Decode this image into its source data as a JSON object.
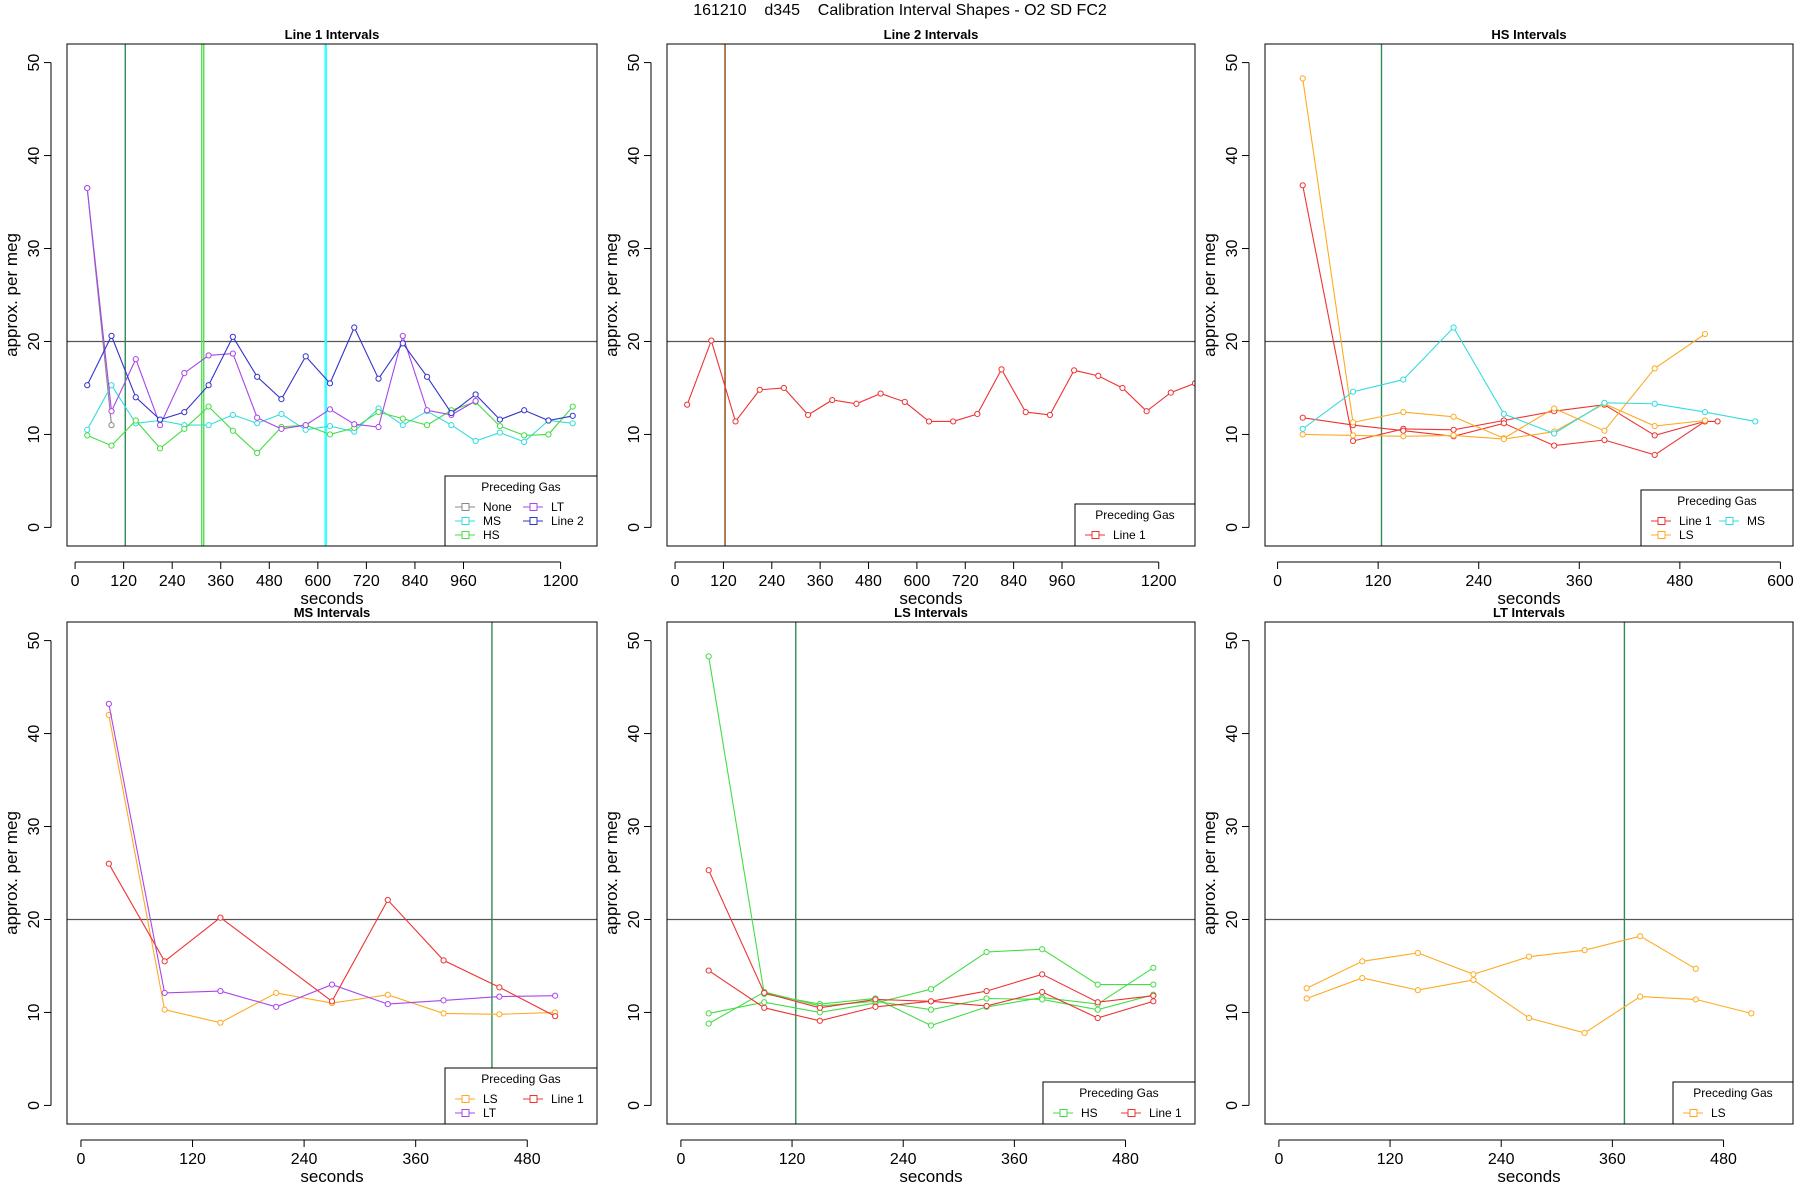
{
  "figure_title": "161210    d345    Calibration Interval Shapes - O2 SD FC2",
  "chart_data": [
    {
      "type": "line",
      "title": "Line 1 Intervals",
      "xlabel": "seconds",
      "ylabel": "approx. per meg",
      "xlim": [
        -20,
        1290
      ],
      "ylim": [
        -2,
        52
      ],
      "xticks": [
        0,
        120,
        240,
        360,
        480,
        600,
        720,
        840,
        960,
        1200
      ],
      "yticks": [
        0,
        10,
        20,
        30,
        40,
        50
      ],
      "hline": 20,
      "vlines": [
        {
          "x": 124,
          "color": "#2e8b57"
        },
        {
          "x": 313,
          "color": "#55dd55"
        },
        {
          "x": 318,
          "color": "#55dd55"
        },
        {
          "x": 618,
          "color": "#33ffff"
        },
        {
          "x": 621,
          "color": "#33ffff"
        }
      ],
      "legend_title": "Preceding Gas",
      "legend_position": "bottom-right",
      "legend_cols": 2,
      "series": [
        {
          "name": "None",
          "color": "#888888",
          "x": [
            30,
            90
          ],
          "y": [
            36.5,
            11
          ]
        },
        {
          "name": "MS",
          "color": "#33dddd",
          "x": [
            30,
            90,
            150,
            210,
            270,
            330,
            390,
            450,
            510,
            570,
            630,
            690,
            750,
            810,
            870,
            930,
            990,
            1050,
            1110,
            1170,
            1230
          ],
          "y": [
            10.5,
            15.3,
            11.2,
            11.5,
            11.0,
            11.0,
            12.1,
            11.2,
            12.2,
            10.5,
            10.9,
            10.3,
            12.8,
            11.0,
            12.5,
            11.0,
            9.3,
            10.2,
            9.2,
            11.5,
            11.2
          ]
        },
        {
          "name": "HS",
          "color": "#44dd44",
          "x": [
            30,
            90,
            150,
            210,
            270,
            330,
            390,
            450,
            510,
            570,
            630,
            690,
            750,
            810,
            870,
            930,
            990,
            1050,
            1110,
            1170,
            1230
          ],
          "y": [
            9.9,
            8.8,
            11.5,
            8.5,
            10.6,
            13.0,
            10.4,
            8.0,
            10.8,
            11.0,
            10.0,
            10.7,
            12.4,
            11.7,
            11.0,
            12.6,
            13.5,
            10.9,
            9.9,
            10.0,
            13.0
          ]
        },
        {
          "name": "LT",
          "color": "#aa44ee",
          "x": [
            30,
            90,
            150,
            210,
            270,
            330,
            390,
            450,
            510,
            570,
            630,
            690,
            750,
            810,
            870,
            930,
            990
          ],
          "y": [
            36.5,
            12.5,
            18.1,
            11.0,
            16.6,
            18.5,
            18.7,
            11.8,
            10.6,
            11.0,
            12.7,
            11.1,
            10.8,
            20.6,
            12.6,
            12.1,
            13.6
          ]
        },
        {
          "name": "Line 2",
          "color": "#3333cc",
          "x": [
            30,
            90,
            150,
            210,
            270,
            330,
            390,
            450,
            510,
            570,
            630,
            690,
            750,
            810,
            870,
            930,
            990,
            1050,
            1110,
            1170,
            1230
          ],
          "y": [
            15.3,
            20.6,
            14.0,
            11.6,
            12.4,
            15.3,
            20.5,
            16.2,
            13.8,
            18.4,
            15.5,
            21.5,
            16.0,
            19.8,
            16.2,
            12.3,
            14.3,
            11.6,
            12.6,
            11.5,
            12.0
          ]
        }
      ]
    },
    {
      "type": "line",
      "title": "Line 2 Intervals",
      "xlabel": "seconds",
      "ylabel": "approx. per meg",
      "xlim": [
        -20,
        1290
      ],
      "ylim": [
        -2,
        52
      ],
      "xticks": [
        0,
        120,
        240,
        360,
        480,
        600,
        720,
        840,
        960,
        1200
      ],
      "yticks": [
        0,
        10,
        20,
        30,
        40,
        50
      ],
      "hline": 20,
      "vlines": [
        {
          "x": 124,
          "color": "#8b4513"
        }
      ],
      "legend_title": "Preceding Gas",
      "legend_position": "bottom-right",
      "legend_cols": 1,
      "series": [
        {
          "name": "Line 1",
          "color": "#ee3333",
          "x": [
            30,
            90,
            150,
            210,
            270,
            330,
            390,
            450,
            510,
            570,
            630,
            690,
            750,
            810,
            870,
            930,
            990,
            1050,
            1110,
            1170,
            1230,
            1290
          ],
          "y": [
            13.2,
            20.1,
            11.4,
            14.8,
            15.0,
            12.1,
            13.7,
            13.3,
            14.4,
            13.5,
            11.4,
            11.4,
            12.2,
            17.0,
            12.4,
            12.1,
            16.9,
            16.3,
            15.0,
            12.5,
            14.5,
            15.5
          ]
        }
      ]
    },
    {
      "type": "line",
      "title": "HS Intervals",
      "xlabel": "seconds",
      "ylabel": "approx. per meg",
      "xlim": [
        -15,
        615
      ],
      "ylim": [
        -2,
        52
      ],
      "xticks": [
        0,
        120,
        240,
        360,
        480,
        600
      ],
      "yticks": [
        0,
        10,
        20,
        30,
        40,
        50
      ],
      "hline": 20,
      "vlines": [
        {
          "x": 124,
          "color": "#2e8b57"
        }
      ],
      "legend_title": "Preceding Gas",
      "legend_position": "bottom-right",
      "legend_cols": 2,
      "series": [
        {
          "name": "Line 1",
          "color": "#ee3333",
          "x": [
            30,
            90,
            150,
            210,
            270,
            330,
            390,
            450,
            510
          ],
          "y": [
            36.8,
            9.3,
            10.6,
            10.5,
            11.5,
            12.5,
            13.2,
            9.9,
            11.4
          ]
        },
        {
          "name": "Line 1",
          "color": "#ee3333",
          "x": [
            30,
            90,
            150,
            210,
            270,
            330,
            390,
            450,
            510,
            525
          ],
          "y": [
            11.8,
            11.0,
            10.4,
            9.8,
            11.2,
            8.8,
            9.4,
            7.8,
            11.4,
            11.4
          ]
        },
        {
          "name": "LS",
          "color": "#ffaa22",
          "x": [
            30,
            90,
            150,
            210,
            270,
            330,
            390,
            450,
            510
          ],
          "y": [
            48.3,
            11.3,
            12.4,
            11.9,
            9.6,
            12.8,
            10.4,
            17.1,
            20.8
          ]
        },
        {
          "name": "LS",
          "color": "#ffaa22",
          "x": [
            30,
            90,
            150,
            210,
            270,
            330,
            390,
            450,
            510
          ],
          "y": [
            10.0,
            9.9,
            9.8,
            9.9,
            9.5,
            10.3,
            13.3,
            10.9,
            11.5
          ]
        },
        {
          "name": "MS",
          "color": "#33dddd",
          "x": [
            30,
            90,
            150,
            210,
            270,
            330,
            390,
            450,
            510,
            570
          ],
          "y": [
            10.6,
            14.6,
            15.9,
            21.5,
            12.2,
            10.1,
            13.4,
            13.3,
            12.4,
            11.4
          ]
        }
      ]
    },
    {
      "type": "line",
      "title": "MS Intervals",
      "xlabel": "seconds",
      "ylabel": "approx. per meg",
      "xlim": [
        -15,
        555
      ],
      "ylim": [
        -2,
        52
      ],
      "xticks": [
        0,
        120,
        240,
        360,
        480
      ],
      "yticks": [
        0,
        10,
        20,
        30,
        40,
        50
      ],
      "hline": 20,
      "vlines": [
        {
          "x": 442,
          "color": "#2e8b57"
        }
      ],
      "legend_title": "Preceding Gas",
      "legend_position": "bottom-right",
      "legend_cols": 2,
      "series": [
        {
          "name": "LS",
          "color": "#ffaa22",
          "x": [
            30,
            90,
            150,
            210,
            270,
            330,
            390,
            450,
            510
          ],
          "y": [
            42.0,
            10.3,
            8.9,
            12.1,
            11.0,
            11.9,
            9.9,
            9.8,
            10.0
          ]
        },
        {
          "name": "LT",
          "color": "#aa44ee",
          "x": [
            30,
            90,
            150,
            210,
            270,
            330,
            390,
            450,
            510
          ],
          "y": [
            43.2,
            12.1,
            12.3,
            10.6,
            13.0,
            10.9,
            11.3,
            11.7,
            11.8
          ]
        },
        {
          "name": "Line 1",
          "color": "#ee3333",
          "x": [
            30,
            90,
            150,
            270,
            330,
            390,
            450,
            510
          ],
          "y": [
            26.0,
            15.5,
            20.2,
            11.2,
            22.1,
            15.6,
            12.7,
            9.6
          ]
        }
      ]
    },
    {
      "type": "line",
      "title": "LS Intervals",
      "xlabel": "seconds",
      "ylabel": "approx. per meg",
      "xlim": [
        -15,
        555
      ],
      "ylim": [
        -2,
        52
      ],
      "xticks": [
        0,
        120,
        240,
        360,
        480
      ],
      "yticks": [
        0,
        10,
        20,
        30,
        40,
        50
      ],
      "hline": 20,
      "vlines": [
        {
          "x": 124,
          "color": "#2e8b57"
        }
      ],
      "legend_title": "Preceding Gas",
      "legend_position": "bottom-right",
      "legend_cols": 2,
      "series": [
        {
          "name": "HS",
          "color": "#44dd44",
          "x": [
            30,
            90,
            150,
            210,
            270,
            330,
            390,
            450,
            510
          ],
          "y": [
            48.3,
            12.0,
            10.9,
            11.5,
            8.6,
            10.6,
            11.6,
            10.9,
            14.8
          ]
        },
        {
          "name": "HS",
          "color": "#44dd44",
          "x": [
            30,
            90,
            150,
            210,
            270,
            330,
            390,
            450,
            510
          ],
          "y": [
            9.9,
            11.1,
            10.0,
            11.0,
            12.5,
            16.5,
            16.8,
            13.0,
            13.0
          ]
        },
        {
          "name": "HS",
          "color": "#44dd44",
          "x": [
            30,
            90,
            150,
            210,
            270,
            330,
            390,
            450,
            510
          ],
          "y": [
            8.8,
            12.2,
            10.7,
            11.2,
            10.3,
            11.5,
            11.4,
            10.3,
            11.9
          ]
        },
        {
          "name": "Line 1",
          "color": "#ee3333",
          "x": [
            30,
            90,
            150,
            210,
            270,
            330,
            390,
            450,
            510
          ],
          "y": [
            25.3,
            12.1,
            10.5,
            11.4,
            11.2,
            12.3,
            14.1,
            11.1,
            11.8
          ]
        },
        {
          "name": "Line 1",
          "color": "#ee3333",
          "x": [
            30,
            90,
            150,
            210,
            270,
            330,
            390,
            450,
            510
          ],
          "y": [
            14.5,
            10.5,
            9.1,
            10.6,
            11.2,
            10.7,
            12.2,
            9.4,
            11.2
          ]
        }
      ]
    },
    {
      "type": "line",
      "title": "LT Intervals",
      "xlabel": "seconds",
      "ylabel": "approx. per meg",
      "xlim": [
        -15,
        555
      ],
      "ylim": [
        -2,
        52
      ],
      "xticks": [
        0,
        120,
        240,
        360,
        480
      ],
      "yticks": [
        0,
        10,
        20,
        30,
        40,
        50
      ],
      "hline": 20,
      "vlines": [
        {
          "x": 373,
          "color": "#2e8b57"
        }
      ],
      "legend_title": "Preceding Gas",
      "legend_position": "bottom-right",
      "legend_cols": 1,
      "series": [
        {
          "name": "LS",
          "color": "#ffaa22",
          "x": [
            30,
            90,
            150,
            210,
            270,
            330,
            390,
            450
          ],
          "y": [
            12.6,
            15.5,
            16.4,
            14.1,
            16.0,
            16.7,
            18.2,
            14.7
          ]
        },
        {
          "name": "LS",
          "color": "#ffaa22",
          "x": [
            30,
            90,
            150,
            210,
            270,
            330,
            390,
            450,
            510
          ],
          "y": [
            11.5,
            13.7,
            12.4,
            13.5,
            9.4,
            7.8,
            11.7,
            11.4,
            9.9
          ]
        }
      ]
    }
  ]
}
